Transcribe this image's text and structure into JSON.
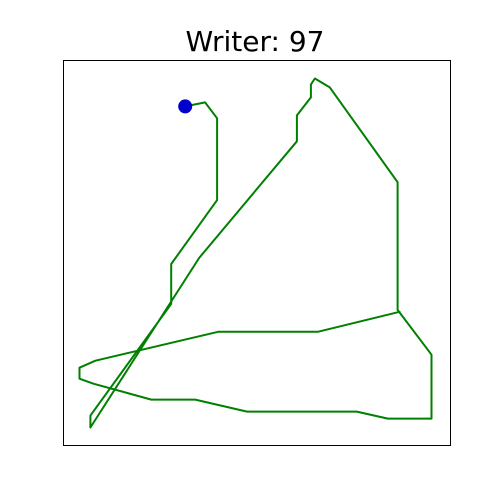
{
  "chart_data": {
    "type": "line",
    "title": "Writer: 97",
    "xlabel": "",
    "ylabel": "",
    "xlim": [
      0,
      388
    ],
    "ylim": [
      0,
      386
    ],
    "grid": false,
    "axes_ticks": false,
    "series": [
      {
        "color": "#008000",
        "points": [
          [
            122,
            340
          ],
          [
            142,
            344
          ],
          [
            154,
            328
          ],
          [
            154,
            246
          ],
          [
            108,
            182
          ],
          [
            108,
            142
          ],
          [
            27,
            30
          ],
          [
            27,
            18
          ],
          [
            136,
            188
          ],
          [
            234,
            305
          ],
          [
            234,
            331
          ],
          [
            248,
            349
          ],
          [
            248,
            362
          ],
          [
            252,
            368
          ],
          [
            267,
            359
          ],
          [
            335,
            264
          ],
          [
            335,
            136
          ],
          [
            369,
            91
          ],
          [
            369,
            27
          ],
          [
            325,
            27
          ],
          [
            294,
            34
          ],
          [
            184,
            34
          ],
          [
            132,
            46
          ],
          [
            88,
            46
          ],
          [
            30,
            62
          ],
          [
            16,
            67
          ],
          [
            16,
            78
          ],
          [
            32,
            85
          ],
          [
            155,
            114
          ],
          [
            255,
            114
          ],
          [
            337,
            134
          ]
        ]
      }
    ],
    "markers": [
      {
        "x": 122,
        "y": 340,
        "color": "#0000cc"
      }
    ]
  }
}
